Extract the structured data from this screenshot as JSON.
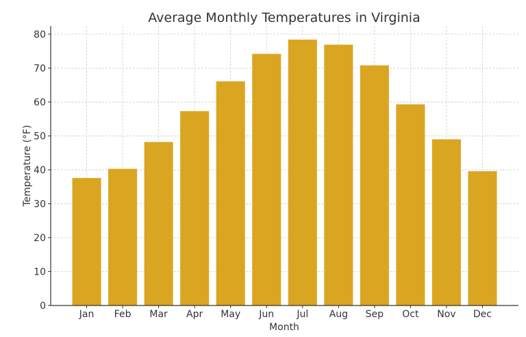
{
  "chart_data": {
    "type": "bar",
    "title": "Average Monthly Temperatures in Virginia",
    "xlabel": "Month",
    "ylabel": "Temperature (°F)",
    "categories": [
      "Jan",
      "Feb",
      "Mar",
      "Apr",
      "May",
      "Jun",
      "Jul",
      "Aug",
      "Sep",
      "Oct",
      "Nov",
      "Dec"
    ],
    "values": [
      37.6,
      40.3,
      48.2,
      57.3,
      66.1,
      74.2,
      78.4,
      76.9,
      70.8,
      59.3,
      49.0,
      39.6
    ],
    "ylim": [
      0,
      82.4
    ],
    "yticks": [
      0,
      10,
      20,
      30,
      40,
      50,
      60,
      70,
      80
    ],
    "grid": true,
    "bar_color": "#DAA520"
  }
}
